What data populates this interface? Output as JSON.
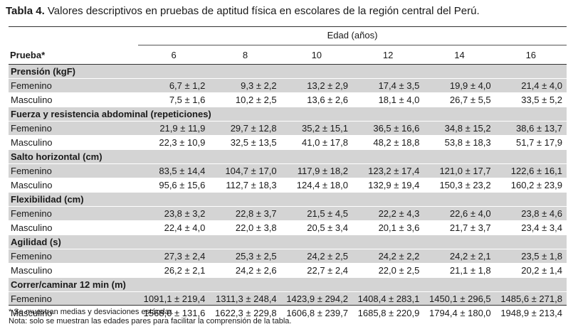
{
  "table": {
    "title_bold": "Tabla 4.",
    "title_rest": " Valores descriptivos en pruebas de aptitud física en escolares de la región central del Perú.",
    "edad_header": "Edad (años)",
    "prueba_header": "Prueba*",
    "ages": [
      "6",
      "8",
      "10",
      "12",
      "14",
      "16"
    ],
    "sections": [
      {
        "name": "Prensión (kgF)",
        "rows": [
          {
            "label": "Femenino",
            "values": [
              "6,7 ± 1,2",
              "9,3 ± 2,2",
              "13,2 ± 2,9",
              "17,4 ± 3,5",
              "19,9 ± 4,0",
              "21,4 ± 4,0"
            ]
          },
          {
            "label": "Masculino",
            "values": [
              "7,5 ± 1,6",
              "10,2 ± 2,5",
              "13,6 ± 2,6",
              "18,1 ± 4,0",
              "26,7 ± 5,5",
              "33,5 ± 5,2"
            ]
          }
        ]
      },
      {
        "name": "Fuerza y resistencia abdominal (repeticiones)",
        "rows": [
          {
            "label": "Femenino",
            "values": [
              "21,9 ± 11,9",
              "29,7 ± 12,8",
              "35,2 ± 15,1",
              "36,5 ± 16,6",
              "34,8 ± 15,2",
              "38,6 ± 13,7"
            ]
          },
          {
            "label": "Masculino",
            "values": [
              "22,3 ± 10,9",
              "32,5 ± 13,5",
              "41,0 ± 17,8",
              "48,2 ± 18,8",
              "53,8 ± 18,3",
              "51,7 ± 17,9"
            ]
          }
        ]
      },
      {
        "name": "Salto horizontal (cm)",
        "rows": [
          {
            "label": "Femenino",
            "values": [
              "83,5 ± 14,4",
              "104,7 ± 17,0",
              "117,9 ± 18,2",
              "123,2 ± 17,4",
              "121,0 ± 17,7",
              "122,6 ± 16,1"
            ]
          },
          {
            "label": "Masculino",
            "values": [
              "95,6 ± 15,6",
              "112,7 ± 18,3",
              "124,4 ± 18,0",
              "132,9 ± 19,4",
              "150,3 ± 23,2",
              "160,2 ± 23,9"
            ]
          }
        ]
      },
      {
        "name": "Flexibilidad (cm)",
        "rows": [
          {
            "label": "Femenino",
            "values": [
              "23,8 ± 3,2",
              "22,8 ± 3,7",
              "21,5 ± 4,5",
              "22,2 ± 4,3",
              "22,6 ± 4,0",
              "23,8 ± 4,6"
            ]
          },
          {
            "label": "Masculino",
            "values": [
              "22,4 ± 4,0",
              "22,0 ± 3,8",
              "20,5 ± 3,4",
              "20,1 ± 3,6",
              "21,7 ± 3,7",
              "23,4 ± 3,4"
            ]
          }
        ]
      },
      {
        "name": "Agilidad (s)",
        "rows": [
          {
            "label": "Femenino",
            "values": [
              "27,3 ± 2,4",
              "25,3 ± 2,5",
              "24,2 ± 2,5",
              "24,2 ± 2,2",
              "24,2 ± 2,1",
              "23,5 ± 1,8"
            ]
          },
          {
            "label": "Masculino",
            "values": [
              "26,2 ± 2,1",
              "24,2 ± 2,6",
              "22,7 ± 2,4",
              "22,0 ± 2,5",
              "21,1 ± 1,8",
              "20,2 ± 1,4"
            ]
          }
        ]
      },
      {
        "name": "Correr/caminar 12 min (m)",
        "rows": [
          {
            "label": "Femenino",
            "values": [
              "1091,1 ± 219,4",
              "1311,3 ± 248,4",
              "1423,9 ± 294,2",
              "1408,4 ± 283,1",
              "1450,1 ± 296,5",
              "1485,6 ± 271,8"
            ]
          },
          {
            "label": "Masculino",
            "values": [
              "1568,0 ± 131,6",
              "1622,3 ± 229,8",
              "1606,8 ± 239,7",
              "1685,8 ± 220,9",
              "1794,4 ± 180,0",
              "1948,9 ± 213,4"
            ]
          }
        ]
      }
    ],
    "footnote_1": "* Se muestran medias y desviaciones estándar.",
    "footnote_2": "Nota: solo se muestran las edades pares para facilitar la comprensión de la tabla."
  }
}
